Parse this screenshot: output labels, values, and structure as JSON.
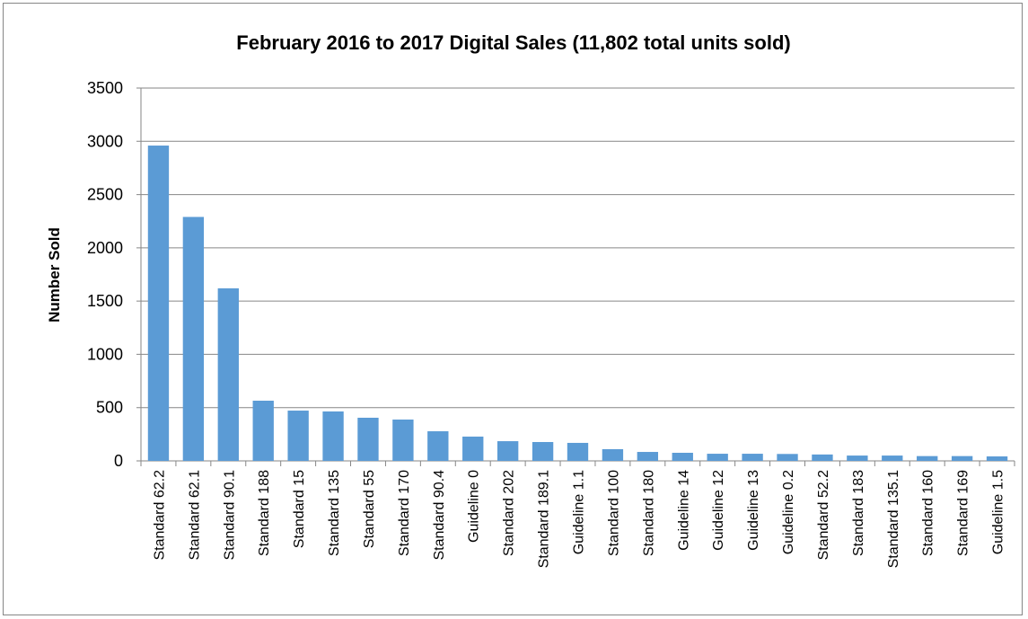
{
  "chart_data": {
    "type": "bar",
    "title": "February 2016 to 2017 Digital Sales (11,802 total units sold)",
    "y_label": "Number Sold",
    "categories": [
      "Standard 62.2",
      "Standard 62.1",
      "Standard 90.1",
      "Standard 188",
      "Standard 15",
      "Standard 135",
      "Standard 55",
      "Standard 170",
      "Standard 90.4",
      "Guideline 0",
      "Standard 202",
      "Standard 189.1",
      "Guideline 1.1",
      "Standard 100",
      "Standard 180",
      "Guideline 14",
      "Guideline 12",
      "Guideline 13",
      "Guideline 0.2",
      "Standard 52.2",
      "Standard 183",
      "Standard 135.1",
      "Standard 160",
      "Standard 169",
      "Guideline 1.5"
    ],
    "values": [
      2960,
      2290,
      1620,
      565,
      472,
      464,
      405,
      388,
      278,
      228,
      185,
      177,
      169,
      110,
      84,
      76,
      67,
      67,
      65,
      60,
      50,
      50,
      45,
      45,
      42
    ],
    "color": "#5b9bd5",
    "ylim": [
      0,
      3500
    ],
    "yticks": [
      0,
      500,
      1000,
      1500,
      2000,
      2500,
      3000,
      3500
    ],
    "grid": true
  }
}
